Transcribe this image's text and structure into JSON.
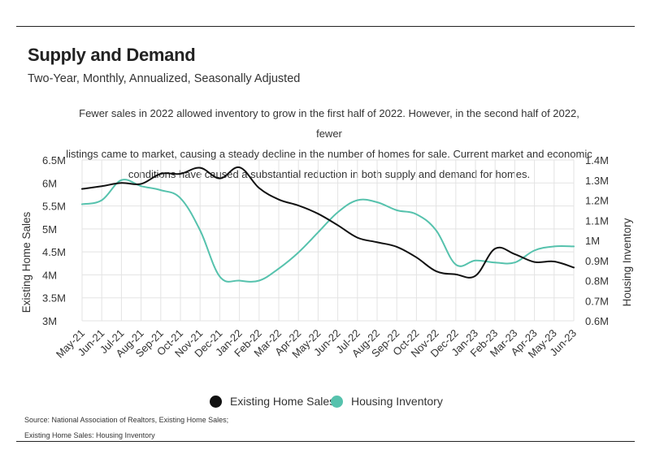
{
  "header": {
    "title": "Supply and Demand",
    "subtitle": "Two-Year, Monthly, Annualized, Seasonally Adjusted",
    "description_lines": [
      "Fewer sales in 2022 allowed inventory to grow in the first half of 2022. However, in the second half of 2022, fewer",
      "listings came to market, causing a steady decline in the number of homes for sale. Current market and economic",
      "conditions have caused a substantial reduction in both supply and demand for homes."
    ]
  },
  "legend": {
    "items": [
      {
        "label": "Existing Home Sales",
        "color": "#111111"
      },
      {
        "label": "Housing Inventory",
        "color": "#56c2ad"
      }
    ]
  },
  "source": {
    "line1": "Source:  National Association of Realtors, Existing Home Sales;",
    "line2": "Existing Home Sales: Housing Inventory"
  },
  "chart_data": {
    "type": "line",
    "categories": [
      "May-21",
      "Jun-21",
      "Jul-21",
      "Aug-21",
      "Sep-21",
      "Oct-21",
      "Nov-21",
      "Dec-21",
      "Jan-22",
      "Feb-22",
      "Mar-22",
      "Apr-22",
      "May-22",
      "Jun-22",
      "Jul-22",
      "Aug-22",
      "Sep-22",
      "Oct-22",
      "Nov-22",
      "Dec-22",
      "Jan-23",
      "Feb-23",
      "Mar-23",
      "Apr-23",
      "May-23",
      "Jun-23"
    ],
    "ylabel_left": "Existing Home Sales",
    "ylabel_right": "Housing Inventory",
    "y_left": {
      "min": 3000000,
      "max": 6500000,
      "ticks": [
        "3M",
        "3.5M",
        "4M",
        "4.5M",
        "5M",
        "5.5M",
        "6M",
        "6.5M"
      ]
    },
    "y_right": {
      "min": 600000,
      "max": 1400000,
      "ticks": [
        "0.6M",
        "0.7M",
        "0.8M",
        "0.9M",
        "1M",
        "1.1M",
        "1.2M",
        "1.3M",
        "1.4M"
      ]
    },
    "grid": true,
    "legend_position": "bottom",
    "series": [
      {
        "name": "Existing Home Sales",
        "axis": "left",
        "color": "#111111",
        "values": [
          5870000,
          5930000,
          6000000,
          5980000,
          6200000,
          6200000,
          6330000,
          6100000,
          6340000,
          5890000,
          5640000,
          5510000,
          5330000,
          5080000,
          4810000,
          4710000,
          4610000,
          4380000,
          4080000,
          4010000,
          3980000,
          4570000,
          4450000,
          4280000,
          4290000,
          4160000
        ]
      },
      {
        "name": "Housing Inventory",
        "axis": "right",
        "color": "#56c2ad",
        "values": [
          1180000,
          1200000,
          1300000,
          1270000,
          1250000,
          1210000,
          1050000,
          820000,
          800000,
          800000,
          860000,
          940000,
          1040000,
          1140000,
          1200000,
          1190000,
          1150000,
          1130000,
          1050000,
          880000,
          900000,
          890000,
          890000,
          950000,
          970000,
          970000
        ]
      }
    ]
  }
}
